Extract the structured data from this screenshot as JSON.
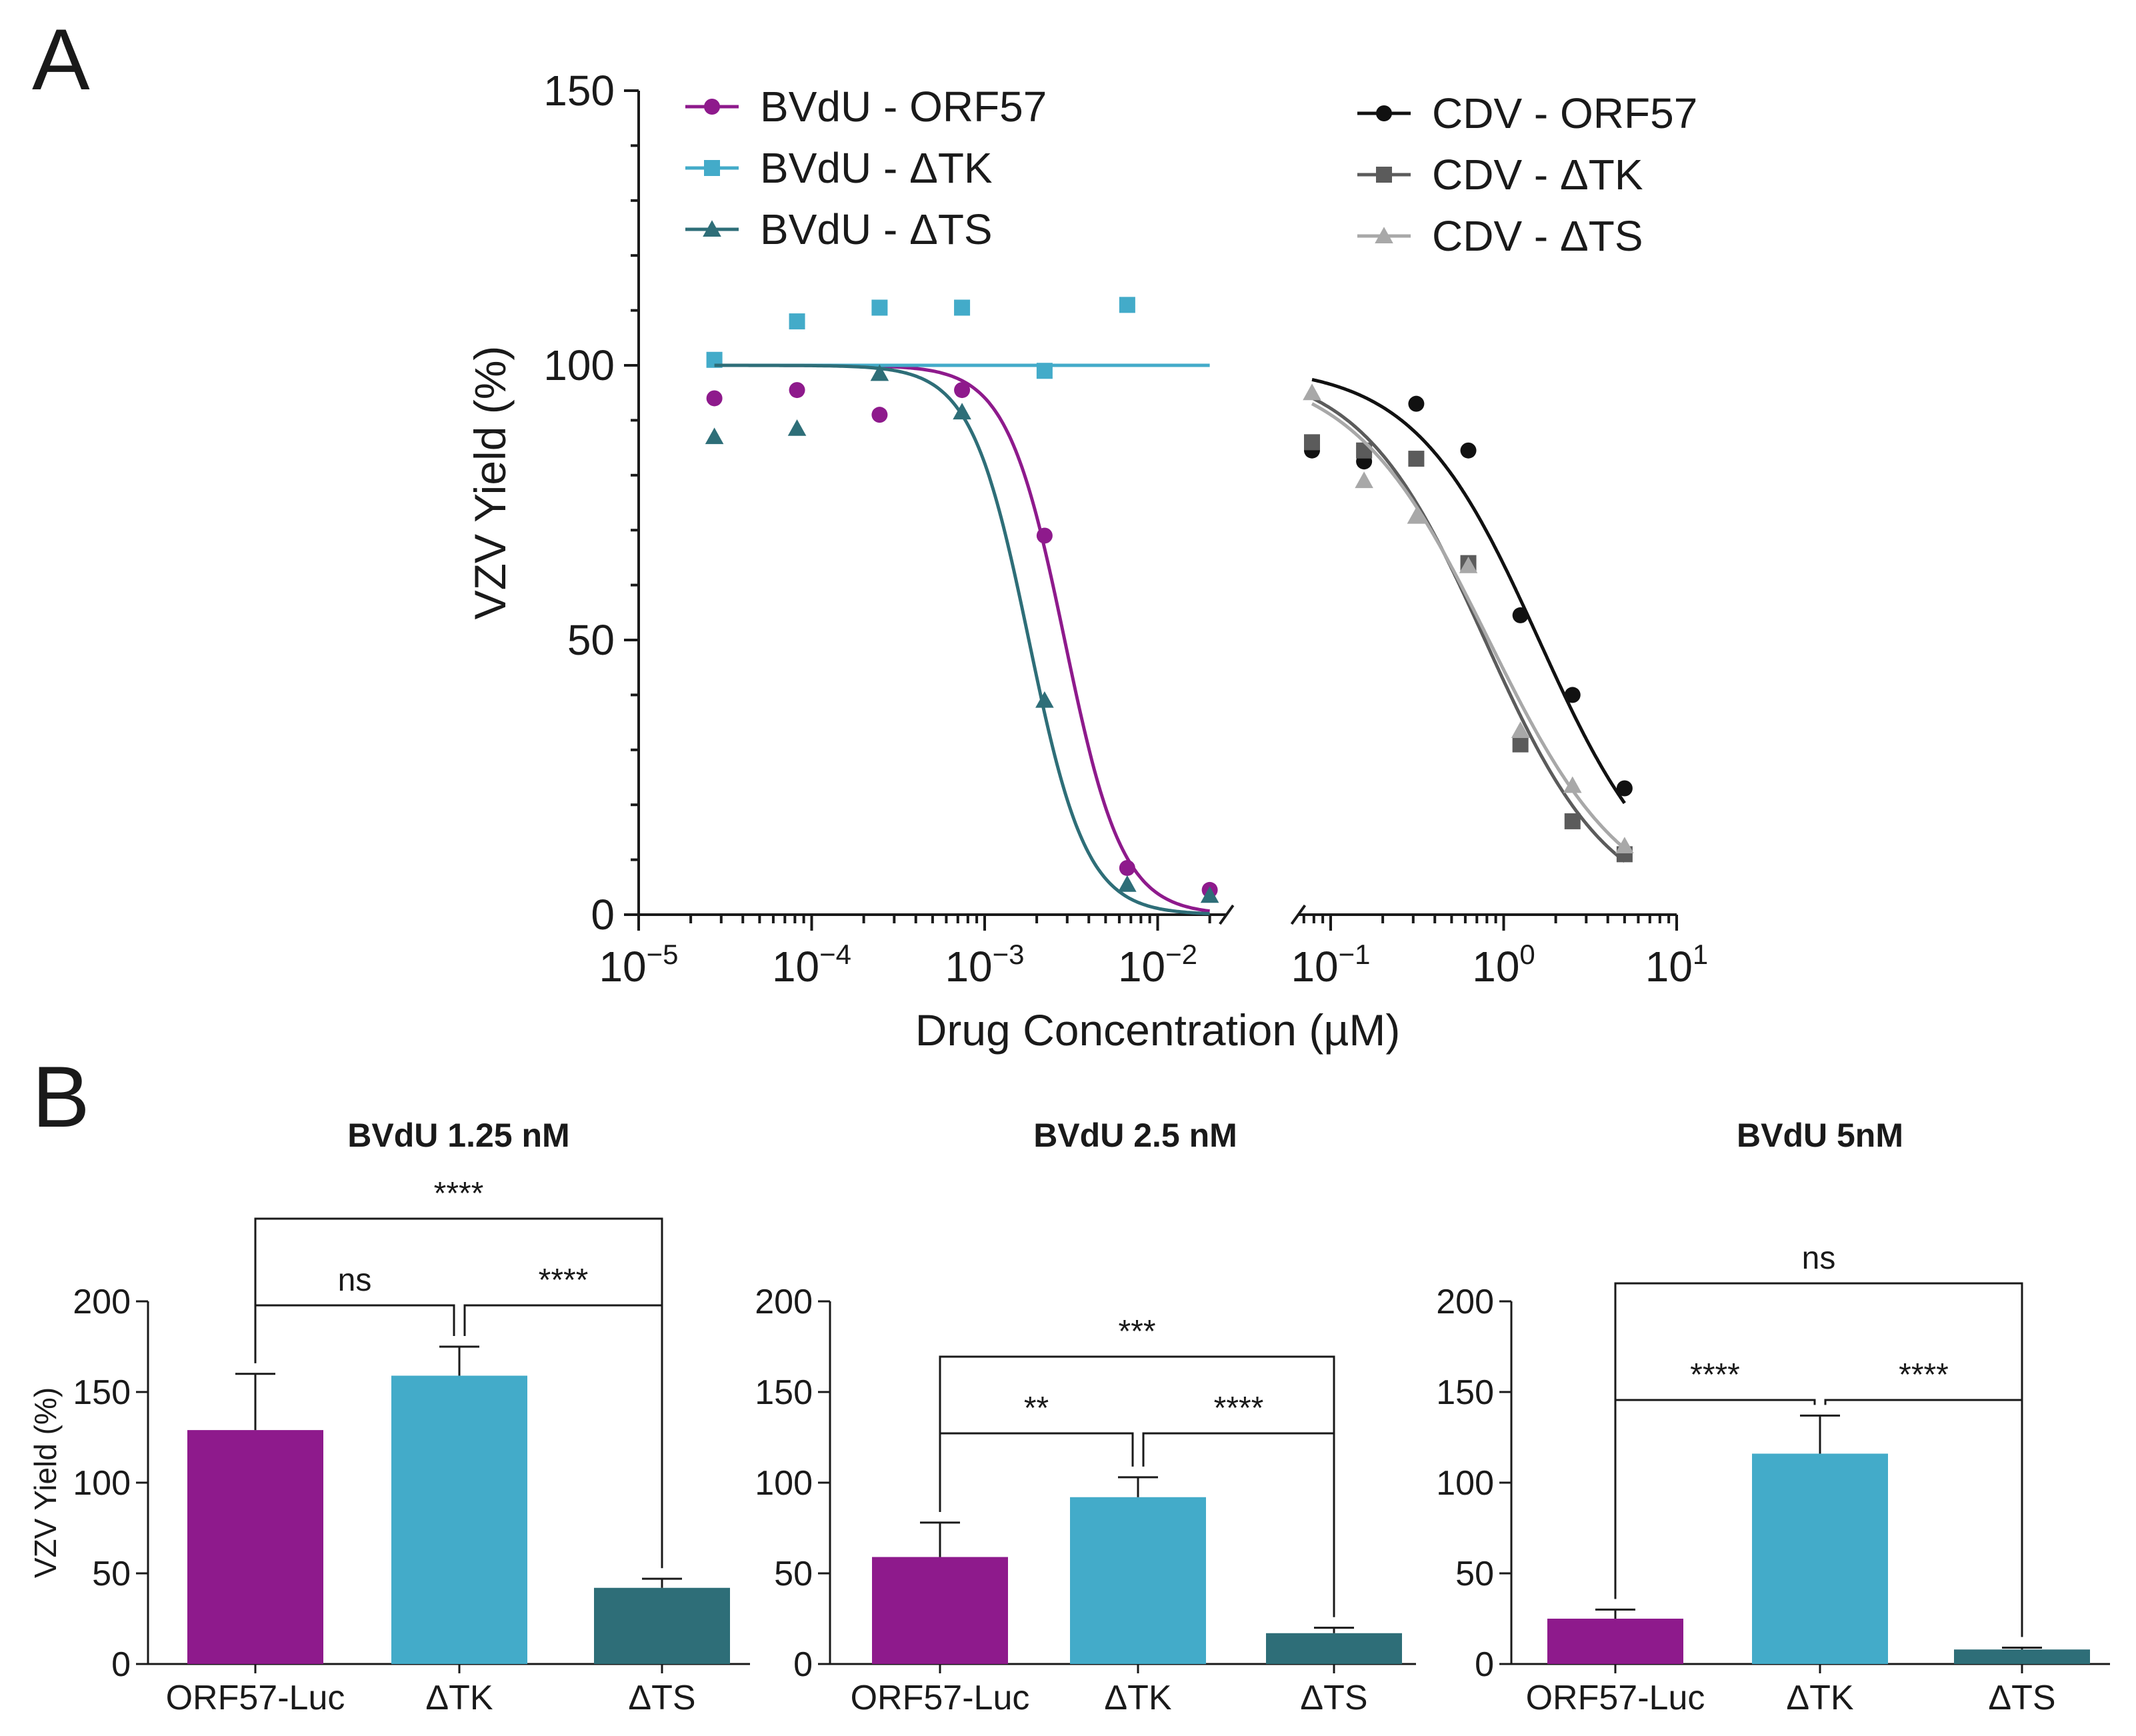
{
  "figure": {
    "panel_a_label": "A",
    "panel_b_label": "B"
  },
  "colors": {
    "bvdu_orf57": "#8e1a8c",
    "bvdu_dtk": "#43abc9",
    "bvdu_dts": "#2e6e78",
    "cdv_orf57": "#111111",
    "cdv_dtk": "#5b5b5b",
    "cdv_dts": "#a8a8a8"
  },
  "chart_data": [
    {
      "type": "scatter",
      "title": "",
      "xlabel": "Drug Concentration (µM)",
      "ylabel": "VZV Yield (%)",
      "xscale": "log",
      "xlim": [
        1e-05,
        10
      ],
      "ylim": [
        0,
        150
      ],
      "yticks": [
        0,
        50,
        100,
        150
      ],
      "xticks": [
        {
          "value": 1e-05,
          "base": "10",
          "exp": "−5"
        },
        {
          "value": 0.0001,
          "base": "10",
          "exp": "−4"
        },
        {
          "value": 0.001,
          "base": "10",
          "exp": "−3"
        },
        {
          "value": 0.01,
          "base": "10",
          "exp": "−2"
        },
        {
          "value": 0.1,
          "base": "10",
          "exp": "−1"
        },
        {
          "value": 1,
          "base": "10",
          "exp": "0"
        },
        {
          "value": 10,
          "base": "10",
          "exp": "1"
        }
      ],
      "x_break": [
        0.025,
        0.065
      ],
      "series": [
        {
          "name": "BVdU - ORF57",
          "key": "bvdu_orf57",
          "color": "#8e1a8c",
          "marker": "circle",
          "x": [
            2.74e-05,
            8.23e-05,
            0.000247,
            0.00074,
            0.00222,
            0.00667,
            0.02
          ],
          "y": [
            94,
            95.5,
            91,
            95.5,
            69,
            8.5,
            4.5
          ],
          "fit": {
            "model": "hill",
            "top": 100,
            "bottom": 0,
            "ec50": 0.0029,
            "hill": 2.6,
            "xmin": 2.74e-05,
            "xmax": 0.02
          }
        },
        {
          "name": "BVdU - ΔTK",
          "key": "bvdu_dtk",
          "color": "#43abc9",
          "marker": "square",
          "x": [
            2.74e-05,
            8.23e-05,
            0.000247,
            0.00074,
            0.00222,
            0.00667
          ],
          "y": [
            101,
            108,
            110.5,
            110.5,
            99,
            111
          ],
          "fit": {
            "model": "flat",
            "value": 100,
            "xmin": 2.74e-05,
            "xmax": 0.02
          }
        },
        {
          "name": "BVdU - ΔTS",
          "key": "bvdu_dts",
          "color": "#2e6e78",
          "marker": "triangle",
          "x": [
            2.74e-05,
            8.23e-05,
            0.000247,
            0.00074,
            0.00222,
            0.00667,
            0.02
          ],
          "y": [
            87,
            88.5,
            98.5,
            91.5,
            39,
            5.5,
            3.5
          ],
          "fit": {
            "model": "hill",
            "top": 100,
            "bottom": 0,
            "ec50": 0.0018,
            "hill": 2.6,
            "xmin": 2.74e-05,
            "xmax": 0.02
          }
        },
        {
          "name": "CDV - ORF57",
          "key": "cdv_orf57",
          "color": "#111111",
          "marker": "circle",
          "x": [
            0.078,
            0.156,
            0.3125,
            0.625,
            1.25,
            2.5,
            5
          ],
          "y": [
            84.5,
            82.5,
            93,
            84.5,
            54.5,
            40,
            23
          ],
          "fit": {
            "model": "hill",
            "top": 100,
            "bottom": 0,
            "ec50": 1.6,
            "hill": 1.2,
            "xmin": 0.078,
            "xmax": 5
          }
        },
        {
          "name": "CDV - ΔTK",
          "key": "cdv_dtk",
          "color": "#5b5b5b",
          "marker": "square",
          "x": [
            0.078,
            0.156,
            0.3125,
            0.625,
            1.25,
            2.5,
            5
          ],
          "y": [
            86,
            84.5,
            83,
            64,
            31,
            17,
            11
          ],
          "fit": {
            "model": "hill",
            "top": 100,
            "bottom": 0,
            "ec50": 0.78,
            "hill": 1.2,
            "xmin": 0.078,
            "xmax": 5
          }
        },
        {
          "name": "CDV - ΔTS",
          "key": "cdv_dts",
          "color": "#a8a8a8",
          "marker": "triangle",
          "x": [
            0.078,
            0.156,
            0.3125,
            0.625,
            1.25,
            2.5,
            5
          ],
          "y": [
            95,
            79,
            72.5,
            63.5,
            33.5,
            23.5,
            12.5
          ],
          "fit": {
            "model": "hill",
            "top": 100,
            "bottom": 0,
            "ec50": 0.82,
            "hill": 1.1,
            "xmin": 0.078,
            "xmax": 5
          }
        }
      ]
    },
    {
      "type": "bar",
      "title": "BVdU 1.25 nM",
      "ylabel": "VZV Yield (%)",
      "ylim": [
        0,
        200
      ],
      "yticks": [
        0,
        50,
        100,
        150,
        200
      ],
      "categories": [
        "ORF57-Luc",
        "ΔTK",
        "ΔTS"
      ],
      "values": [
        129,
        159,
        42
      ],
      "errors": [
        31,
        16,
        5
      ],
      "colors": [
        "#8e1a8c",
        "#43abc9",
        "#2e6e78"
      ],
      "comparisons": [
        {
          "from": 0,
          "to": 1,
          "label": "ns",
          "level": 0
        },
        {
          "from": 1,
          "to": 2,
          "label": "****",
          "level": 0
        },
        {
          "from": 0,
          "to": 2,
          "label": "****",
          "level": 1
        }
      ]
    },
    {
      "type": "bar",
      "title": "BVdU 2.5 nM",
      "ylabel": "",
      "ylim": [
        0,
        200
      ],
      "yticks": [
        0,
        50,
        100,
        150,
        200
      ],
      "categories": [
        "ORF57-Luc",
        "ΔTK",
        "ΔTS"
      ],
      "values": [
        59,
        92,
        17
      ],
      "errors": [
        19,
        11,
        3
      ],
      "colors": [
        "#8e1a8c",
        "#43abc9",
        "#2e6e78"
      ],
      "comparisons": [
        {
          "from": 0,
          "to": 1,
          "label": "**",
          "level": 0
        },
        {
          "from": 1,
          "to": 2,
          "label": "****",
          "level": 0
        },
        {
          "from": 0,
          "to": 2,
          "label": "***",
          "level": 1
        }
      ]
    },
    {
      "type": "bar",
      "title": "BVdU 5nM",
      "ylabel": "",
      "ylim": [
        0,
        200
      ],
      "yticks": [
        0,
        50,
        100,
        150,
        200
      ],
      "categories": [
        "ORF57-Luc",
        "ΔTK",
        "ΔTS"
      ],
      "values": [
        25,
        116,
        8
      ],
      "errors": [
        5,
        21,
        1
      ],
      "colors": [
        "#8e1a8c",
        "#43abc9",
        "#2e6e78"
      ],
      "comparisons": [
        {
          "from": 0,
          "to": 1,
          "label": "****",
          "level": 0
        },
        {
          "from": 1,
          "to": 2,
          "label": "****",
          "level": 0
        },
        {
          "from": 0,
          "to": 2,
          "label": "ns",
          "level": 1
        }
      ]
    }
  ]
}
